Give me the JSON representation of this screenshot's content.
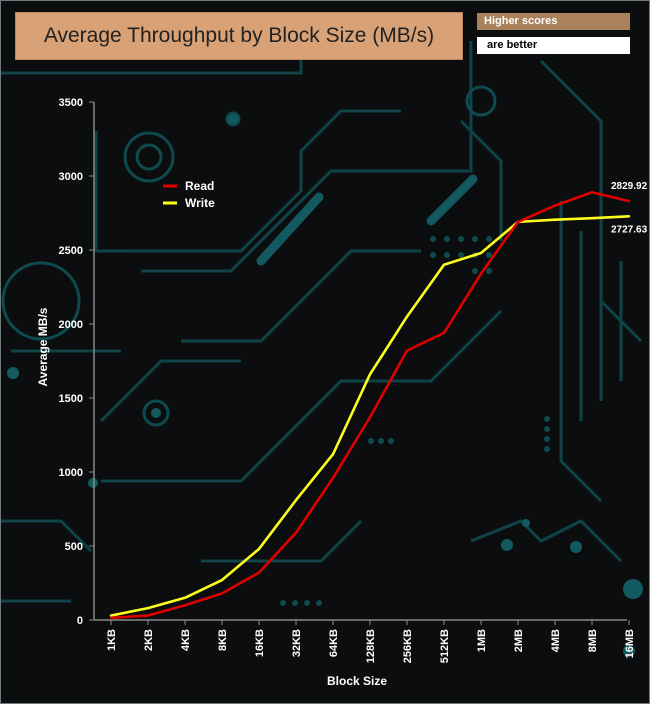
{
  "header": {
    "title": "Average Throughput by Block Size (MB/s)",
    "badge_line1": "Higher scores",
    "badge_line2": "are better"
  },
  "colors": {
    "read": "#e00000",
    "write": "#ffff1e",
    "title_bg": "#d9a176",
    "circuit": "#0f5257"
  },
  "chart_data": {
    "type": "line",
    "title": "Average Throughput by Block Size (MB/s)",
    "xlabel": "Block Size",
    "ylabel": "Average MB/s",
    "ylim": [
      0,
      3500
    ],
    "yticks": [
      0,
      500,
      1000,
      1500,
      2000,
      2500,
      3000,
      3500
    ],
    "categories": [
      "1KB",
      "2KB",
      "4KB",
      "8KB",
      "16KB",
      "32KB",
      "64KB",
      "128KB",
      "256KB",
      "512KB",
      "1MB",
      "2MB",
      "4MB",
      "8MB",
      "16MB"
    ],
    "legend_position": "top-left",
    "grid": false,
    "series": [
      {
        "name": "Read",
        "color": "#e00000",
        "values": [
          15,
          30,
          100,
          180,
          320,
          590,
          960,
          1370,
          1820,
          1940,
          2340,
          2690,
          2800,
          2890,
          2829.92
        ],
        "end_label": "2829.92"
      },
      {
        "name": "Write",
        "color": "#ffff1e",
        "values": [
          30,
          80,
          150,
          270,
          480,
          810,
          1120,
          1660,
          2050,
          2400,
          2480,
          2690,
          2705,
          2715,
          2727.63
        ],
        "end_label": "2727.63"
      }
    ]
  }
}
